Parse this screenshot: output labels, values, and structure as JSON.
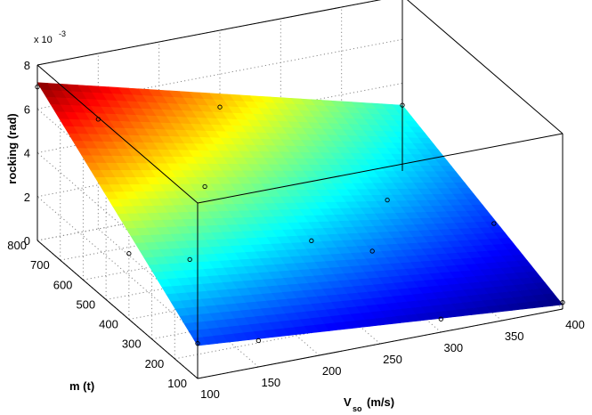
{
  "chart_data": {
    "type": "surface3d",
    "title": "",
    "xlabel_main": "V",
    "xlabel_sub": "so",
    "xlabel_unit": "(m/s)",
    "ylabel": "m (t)",
    "zlabel": "rocking (rad)",
    "z_multiplier": "x 10",
    "z_exponent": "-3",
    "x_ticks": [
      "100",
      "150",
      "200",
      "250",
      "300",
      "350",
      "400"
    ],
    "y_ticks": [
      "100",
      "200",
      "300",
      "400",
      "500",
      "600",
      "700",
      "800"
    ],
    "z_ticks": [
      "0",
      "2",
      "4",
      "6",
      "8"
    ],
    "xlim": [
      100,
      400
    ],
    "ylim": [
      100,
      800
    ],
    "zlim": [
      0,
      0.008
    ],
    "colormap": "jet",
    "grid": true,
    "surface_corners": [
      {
        "x": 100,
        "y": 800,
        "z": 0.0072
      },
      {
        "x": 400,
        "y": 800,
        "z": 0.003
      },
      {
        "x": 100,
        "y": 100,
        "z": 0.0015
      },
      {
        "x": 400,
        "y": 100,
        "z": 0.0002
      }
    ],
    "markers": [
      {
        "x": 100,
        "y": 100,
        "z": 0.0016
      },
      {
        "x": 100,
        "y": 400,
        "z": 0.003
      },
      {
        "x": 100,
        "y": 800,
        "z": 0.007
      },
      {
        "x": 150,
        "y": 100,
        "z": 0.0012
      },
      {
        "x": 150,
        "y": 400,
        "z": 0.0022
      },
      {
        "x": 150,
        "y": 800,
        "z": 0.005
      },
      {
        "x": 250,
        "y": 800,
        "z": 0.0045
      },
      {
        "x": 250,
        "y": 400,
        "z": 0.002
      },
      {
        "x": 300,
        "y": 100,
        "z": 0.0006
      },
      {
        "x": 300,
        "y": 400,
        "z": 0.001
      },
      {
        "x": 400,
        "y": 800,
        "z": 0.003
      },
      {
        "x": 400,
        "y": 400,
        "z": 0.0012
      },
      {
        "x": 400,
        "y": 100,
        "z": 0.0003
      },
      {
        "x": 350,
        "y": 600,
        "z": 0.001
      },
      {
        "x": 200,
        "y": 600,
        "z": 0.0032
      }
    ]
  }
}
